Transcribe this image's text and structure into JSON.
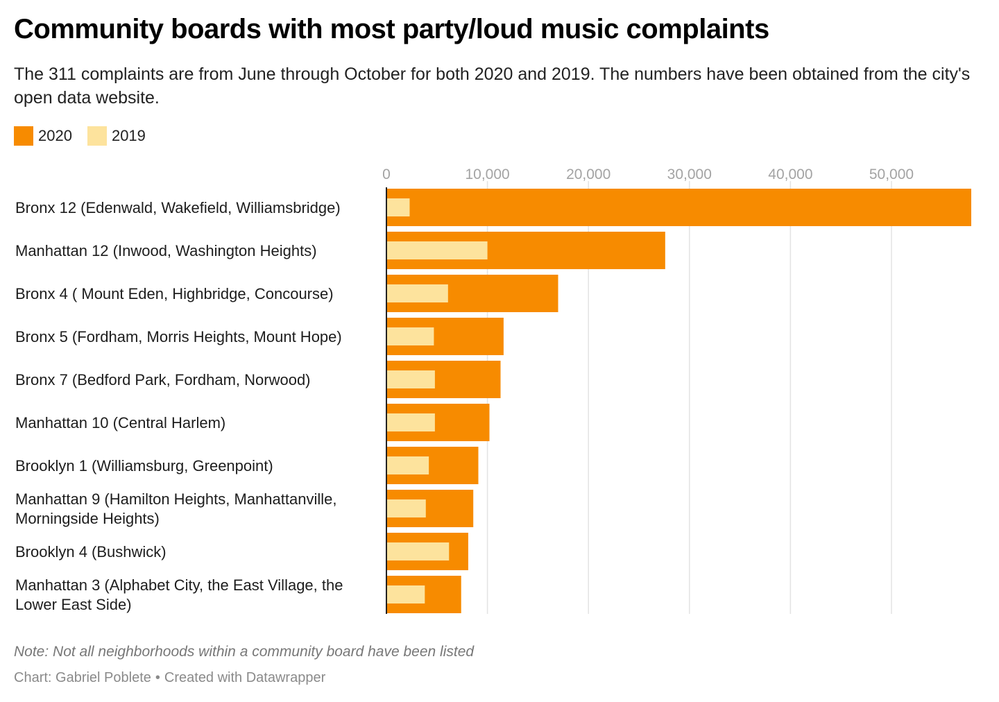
{
  "header": {
    "title": "Community boards with most party/loud music complaints",
    "subtitle": "The 311 complaints are from June through October for both 2020 and 2019. The numbers have been obtained from the city's open data website."
  },
  "legend": [
    {
      "label": "2020",
      "color": "#f78b00"
    },
    {
      "label": "2019",
      "color": "#fde39d"
    }
  ],
  "footer": {
    "note": "Note: Not all neighborhoods within a community board have been listed",
    "credit_chart": "Chart: Gabriel Poblete",
    "credit_sep": "•",
    "credit_tool": "Created with Datawrapper"
  },
  "chart_data": {
    "type": "bar",
    "orientation": "horizontal",
    "categories": [
      "Bronx 12 (Edenwald, Wakefield, Williamsbridge)",
      "Manhattan 12 (Inwood, Washington Heights)",
      "Bronx 4 ( Mount Eden, Highbridge, Concourse)",
      "Bronx 5 (Fordham, Morris Heights, Mount Hope)",
      "Bronx 7 (Bedford Park, Fordham, Norwood)",
      "Manhattan 10 (Central Harlem)",
      "Brooklyn 1 (Williamsburg, Greenpoint)",
      "Manhattan 9 (Hamilton Heights, Manhattanville, Morningside Heights)",
      "Brooklyn 4 (Bushwick)",
      "Manhattan 3 (Alphabet City, the East Village, the Lower East Side)"
    ],
    "series": [
      {
        "name": "2020",
        "color": "#f78b00",
        "values": [
          57900,
          27600,
          17000,
          11600,
          11300,
          10200,
          9100,
          8600,
          8100,
          7400
        ]
      },
      {
        "name": "2019",
        "color": "#fde39d",
        "values": [
          2300,
          10000,
          6100,
          4700,
          4800,
          4800,
          4200,
          3900,
          6200,
          3800
        ]
      }
    ],
    "xlim": [
      0,
      57900
    ],
    "xticks": [
      0,
      10000,
      20000,
      30000,
      40000,
      50000
    ],
    "xtick_labels": [
      "0",
      "10,000",
      "20,000",
      "30,000",
      "40,000",
      "50,000"
    ],
    "grid": true,
    "legend_position": "top-left"
  }
}
